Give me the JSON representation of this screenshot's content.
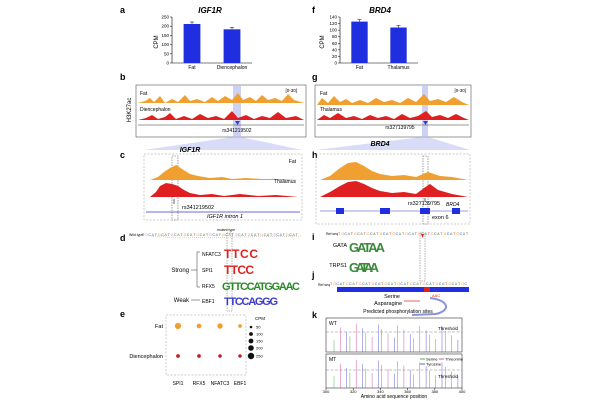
{
  "panels": {
    "a": {
      "letter": "a",
      "title": "IGF1R",
      "ylabel": "CPM"
    },
    "b": {
      "letter": "b",
      "ylabel": "H3K27ac",
      "range": "[0-30]",
      "track1": "Fat",
      "track2": "Diencephalon",
      "snp": "rs341219502"
    },
    "c": {
      "letter": "c",
      "title": "IGF1R",
      "track1": "Fat",
      "track2": "Thalamus",
      "snp": "rs341219502",
      "intron": "IGF1R intron 1"
    },
    "d": {
      "letter": "d",
      "wildtype": "Wild type",
      "mutant": "mutant type",
      "group_strong": "Strong",
      "group_weak": "Weak",
      "motifs": [
        {
          "name": "NFATC3",
          "logo": "TTCC"
        },
        {
          "name": "SPI1",
          "logo": "TTCC"
        },
        {
          "name": "RFX5",
          "logo": "GTTCCATGGAAC"
        },
        {
          "name": "EBF1",
          "logo": "TTCCAGGG"
        }
      ]
    },
    "e": {
      "letter": "e",
      "rows": [
        "Fat",
        "Diencephalon"
      ],
      "cols": [
        "SPI1",
        "RFX5",
        "NFATC3",
        "EBF1"
      ],
      "legend_title": "CPM",
      "legend_values": [
        "50",
        "100",
        "150",
        "200",
        "250"
      ]
    },
    "f": {
      "letter": "f",
      "title": "BRD4",
      "ylabel": "CPM"
    },
    "g": {
      "letter": "g",
      "range": "[0-30]",
      "track1": "Fat",
      "track2": "Thalamus",
      "snp": "rs327139795"
    },
    "h": {
      "letter": "h",
      "title": "BRD4",
      "snp": "rs327139795",
      "gene": "BRD4",
      "exon": "exon 6"
    },
    "i": {
      "letter": "i",
      "refseq": "Ref seq",
      "motif1": "GATA",
      "logo1": "GATAA",
      "motif2": "TRPS1",
      "logo2": "GATAA"
    },
    "j": {
      "letter": "j",
      "refseq": "Ref seq",
      "serine": "Serine",
      "asparagine": "Asparagine",
      "codon_wt": "AGC",
      "codon_mt": "AAC"
    },
    "k": {
      "letter": "k",
      "title": "Predicted phosphorylation sites",
      "wt": "WT",
      "mt": "MT",
      "threshold": "Threshold",
      "legend": [
        "Serine",
        "Threonine",
        "Tyrosine"
      ],
      "xlabel": "Amino acid sequence position",
      "xticks": [
        "300",
        "320",
        "340",
        "360",
        "380",
        "400"
      ]
    }
  },
  "colors": {
    "blue": "#1f2fe0",
    "orange": "#f0a030",
    "red": "#e02020",
    "highlight": "#b8bff0"
  },
  "chart_data": [
    {
      "type": "bar",
      "panel": "a",
      "title": "IGF1R",
      "ylabel": "CPM",
      "categories": [
        "Fat",
        "Diencephalon"
      ],
      "values": [
        212,
        183
      ],
      "ylim": [
        0,
        250
      ],
      "yticks": [
        0,
        50,
        100,
        150,
        200,
        250
      ]
    },
    {
      "type": "bar",
      "panel": "f",
      "title": "BRD4",
      "ylabel": "CPM",
      "categories": [
        "Fat",
        "Thalamus"
      ],
      "values": [
        126,
        108
      ],
      "ylim": [
        0,
        140
      ],
      "yticks": [
        0,
        20,
        40,
        60,
        80,
        100,
        120,
        140
      ]
    }
  ],
  "dot_values": [
    [
      210,
      90,
      140,
      35
    ],
    [
      35,
      35,
      30,
      25
    ]
  ]
}
